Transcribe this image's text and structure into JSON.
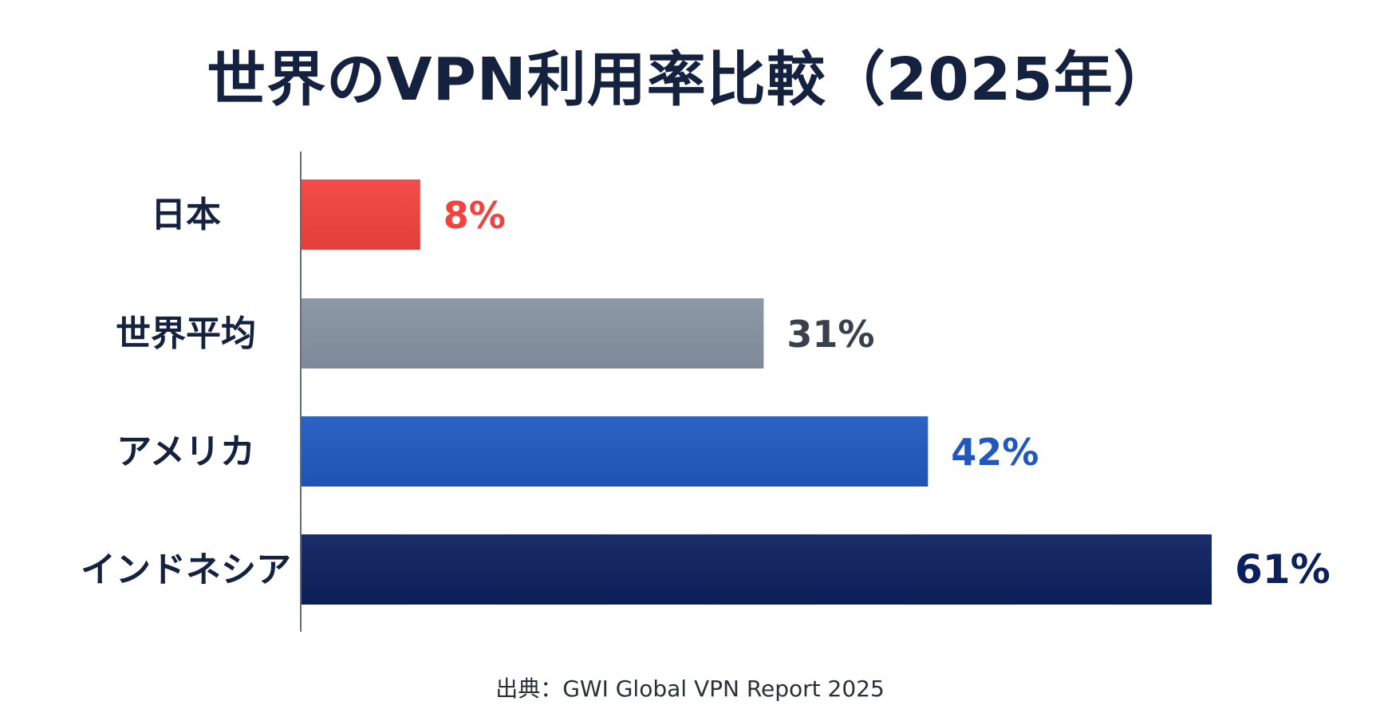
{
  "chart_data": {
    "type": "bar",
    "orientation": "horizontal",
    "title": "世界のVPN利用率比較（2025年）",
    "categories": [
      "日本",
      "世界平均",
      "アメリカ",
      "インドネシア"
    ],
    "values": [
      8,
      31,
      42,
      61
    ],
    "value_labels": [
      "8%",
      "31%",
      "42%",
      "61%"
    ],
    "colors": [
      "#f2423d",
      "#8592a1",
      "#1f59bf",
      "#0d205e"
    ],
    "label_colors": [
      "#f2423d",
      "#3a414c",
      "#1f59bf",
      "#0d205e"
    ],
    "xlim": [
      0,
      61
    ],
    "grid": false,
    "legend": "none",
    "source": "出典：GWI Global VPN Report 2025"
  }
}
